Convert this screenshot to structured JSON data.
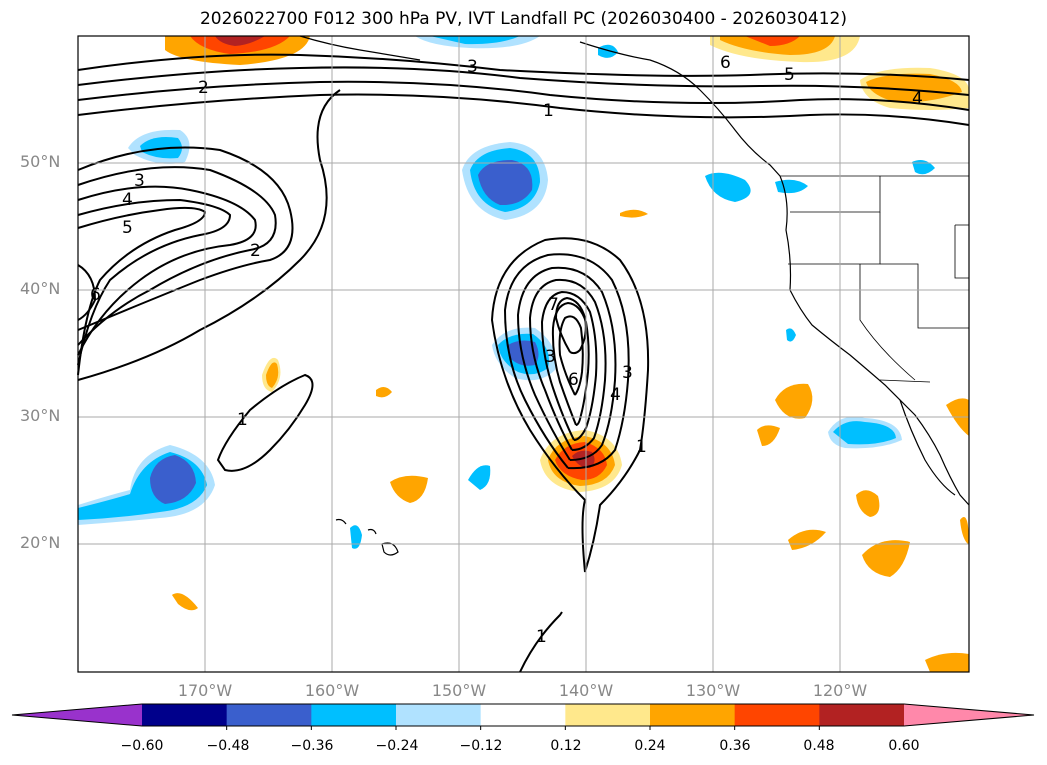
{
  "title": "2026022700 F012 300 hPa PV, IVT Landfall PC (2026030400 - 2026030412)",
  "map": {
    "projection": "plate carree",
    "lat_range": [
      10,
      60
    ],
    "lon_range": [
      -180,
      -110
    ],
    "grid": true,
    "lat_labels": [
      "50°N",
      "40°N",
      "30°N",
      "20°N"
    ],
    "lon_labels": [
      "170°W",
      "160°W",
      "150°W",
      "140°W",
      "130°W",
      "120°W"
    ]
  },
  "contour_labels": [
    "2",
    "3",
    "6",
    "5",
    "4",
    "1",
    "3",
    "4",
    "5",
    "2",
    "6",
    "1",
    "7",
    "3",
    "6",
    "4",
    "3",
    "1",
    "1"
  ],
  "colorbar": {
    "ticks": [
      "−0.60",
      "−0.48",
      "−0.36",
      "−0.24",
      "−0.12",
      "0.12",
      "0.24",
      "0.36",
      "0.48",
      "0.60"
    ],
    "colors": [
      "#9932cc",
      "#00008b",
      "#3a5fcd",
      "#00bfff",
      "#b0e2ff",
      "#ffffff",
      "#ffe88c",
      "#ffa500",
      "#ff4500",
      "#b22222",
      "#ff88aa"
    ]
  }
}
